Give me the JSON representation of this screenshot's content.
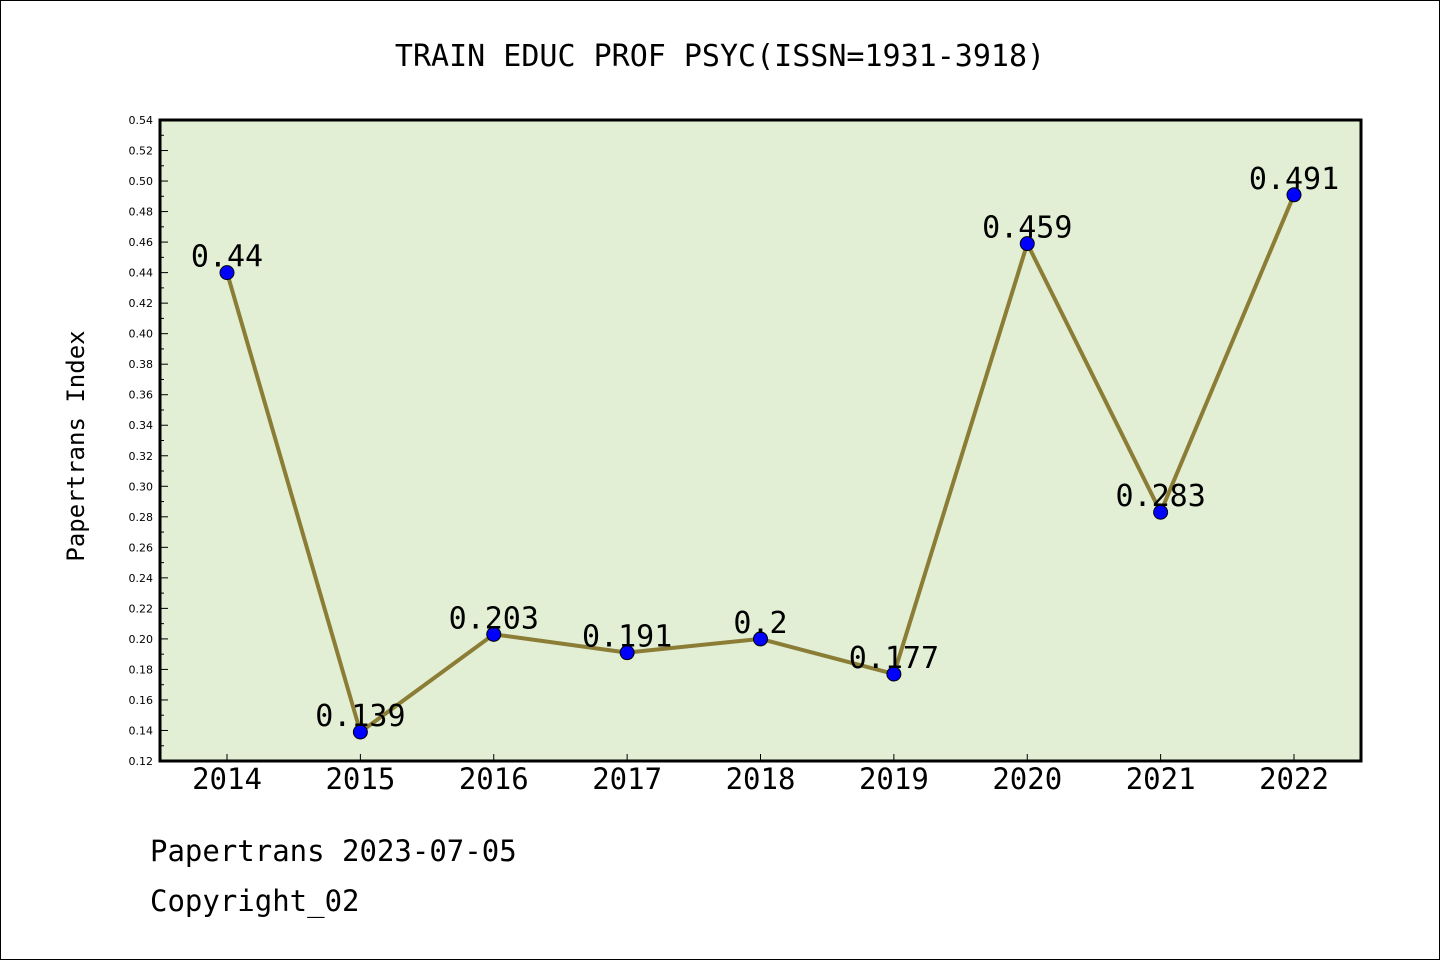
{
  "chart_data": {
    "type": "line",
    "title": "TRAIN EDUC PROF PSYC(ISSN=1931-3918)",
    "xlabel": "",
    "ylabel": "Papertrans Index",
    "categories": [
      "2014",
      "2015",
      "2016",
      "2017",
      "2018",
      "2019",
      "2020",
      "2021",
      "2022"
    ],
    "series": [
      {
        "values": [
          0.44,
          0.139,
          0.203,
          0.191,
          0.2,
          0.177,
          0.459,
          0.283,
          0.491
        ],
        "labels": [
          "0.44",
          "0.139",
          "0.203",
          "0.191",
          "0.2",
          "0.177",
          "0.459",
          "0.283",
          "0.491"
        ]
      }
    ],
    "ylim": [
      0.12,
      0.54
    ],
    "yticks": [
      "0.12",
      "0.14",
      "0.16",
      "0.18",
      "0.20",
      "0.22",
      "0.24",
      "0.26",
      "0.28",
      "0.30",
      "0.32",
      "0.34",
      "0.36",
      "0.38",
      "0.40",
      "0.42",
      "0.44",
      "0.46",
      "0.48",
      "0.50",
      "0.52",
      "0.54"
    ],
    "grid": false,
    "colors": {
      "plot_background": "#e2efd5",
      "line": "#8b7d35",
      "marker": "#0000ff"
    }
  },
  "footer": {
    "date_text": "Papertrans 2023-07-05",
    "copyright_text": "Copyright_02"
  }
}
